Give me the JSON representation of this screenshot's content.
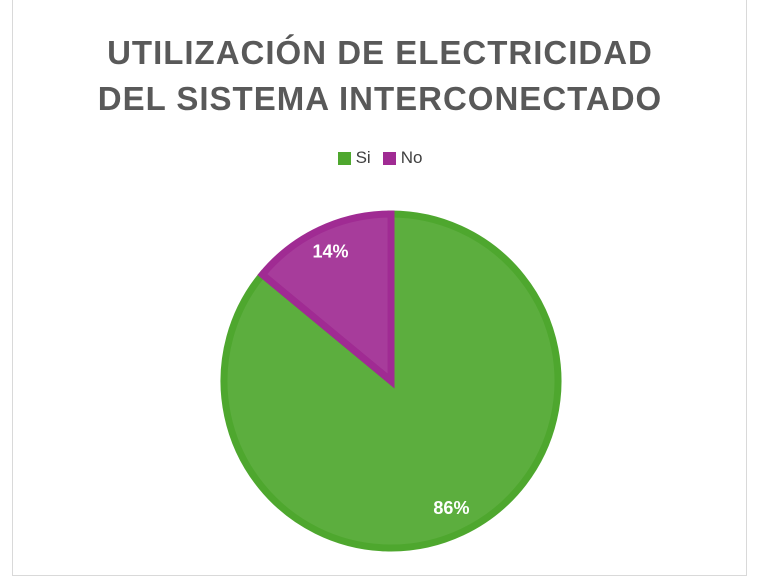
{
  "chart_data": {
    "type": "pie",
    "title": "UTILIZACIÓN DE ELECTRICIDAD DEL SISTEMA INTERCONECTADO",
    "categories": [
      "Si",
      "No"
    ],
    "values": [
      86,
      14
    ],
    "value_labels": [
      "86%",
      "14%"
    ],
    "colors": [
      "#4ea72e",
      "#a02b93"
    ],
    "legend": "top"
  }
}
